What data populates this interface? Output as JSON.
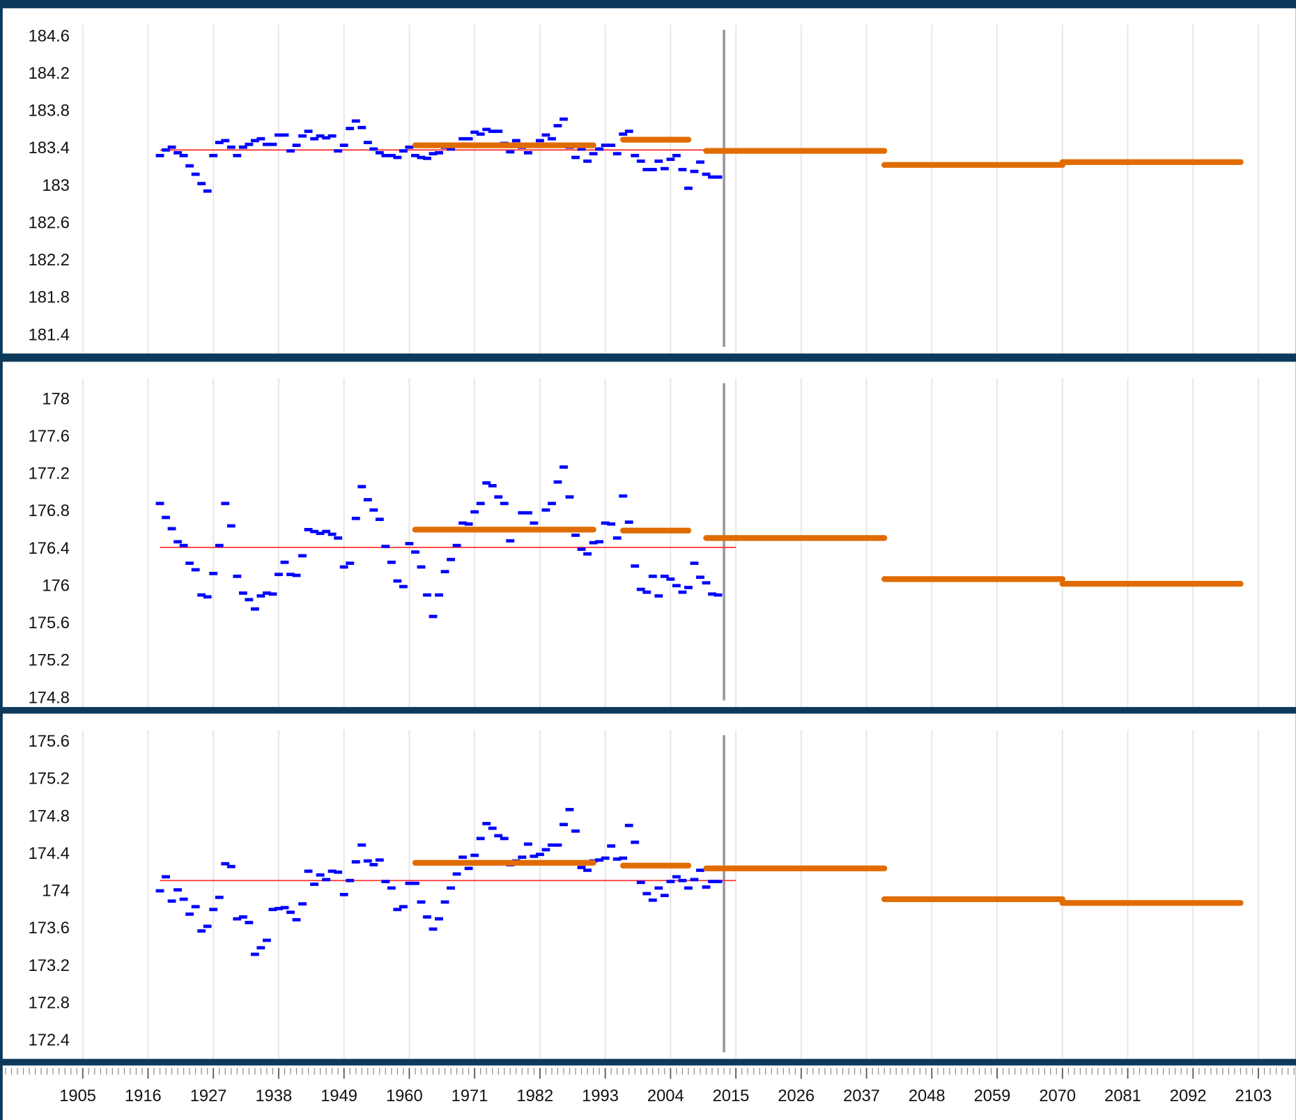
{
  "x_axis": {
    "xlim": [
      1891.1,
      2109.3
    ],
    "xticks": [
      1905,
      1916,
      1927,
      1938,
      1949,
      1960,
      1971,
      1982,
      1993,
      2004,
      2015,
      2026,
      2037,
      2048,
      2059,
      2070,
      2081,
      2092,
      2103
    ],
    "x": [
      1918,
      1919,
      1920,
      1921,
      1922,
      1923,
      1924,
      1925,
      1926,
      1927,
      1928,
      1929,
      1930,
      1931,
      1932,
      1933,
      1934,
      1935,
      1936,
      1937,
      1938,
      1939,
      1940,
      1941,
      1942,
      1943,
      1944,
      1945,
      1946,
      1947,
      1948,
      1949,
      1950,
      1951,
      1952,
      1953,
      1954,
      1955,
      1956,
      1957,
      1958,
      1959,
      1960,
      1961,
      1962,
      1963,
      1964,
      1965,
      1966,
      1967,
      1968,
      1969,
      1970,
      1971,
      1972,
      1973,
      1974,
      1975,
      1976,
      1977,
      1978,
      1979,
      1980,
      1981,
      1982,
      1983,
      1984,
      1985,
      1986,
      1987,
      1988,
      1989,
      1990,
      1991,
      1992,
      1993,
      1994,
      1995,
      1996,
      1997,
      1998,
      1999,
      2000,
      2001,
      2002,
      2003,
      2004,
      2005,
      2006,
      2007,
      2008,
      2009,
      2010,
      2011,
      2012
    ],
    "marker_x": 2013,
    "grid": true
  },
  "chart_data": [
    {
      "type": "scatter",
      "ylim": [
        181.21,
        184.89
      ],
      "yticks": [
        181.4,
        181.8,
        182.2,
        182.6,
        183,
        183.4,
        183.8,
        184.2,
        184.6
      ],
      "series": [
        {
          "color": "#0000ff",
          "values": [
            183.33,
            183.39,
            183.42,
            183.36,
            183.33,
            183.22,
            183.13,
            183.03,
            182.95,
            183.33,
            183.47,
            183.49,
            183.42,
            183.33,
            183.42,
            183.45,
            183.49,
            183.51,
            183.45,
            183.45,
            183.55,
            183.55,
            183.38,
            183.44,
            183.54,
            183.59,
            183.51,
            183.54,
            183.52,
            183.54,
            183.38,
            183.44,
            183.62,
            183.7,
            183.63,
            183.47,
            183.4,
            183.36,
            183.33,
            183.33,
            183.31,
            183.38,
            183.42,
            183.33,
            183.31,
            183.3,
            183.35,
            183.36,
            183.42,
            183.4,
            183.45,
            183.51,
            183.51,
            183.58,
            183.56,
            183.61,
            183.59,
            183.59,
            183.46,
            183.37,
            183.49,
            183.42,
            183.36,
            183.44,
            183.49,
            183.55,
            183.51,
            183.65,
            183.72,
            183.42,
            183.31,
            183.4,
            183.27,
            183.35,
            183.4,
            183.44,
            183.44,
            183.35,
            183.56,
            183.59,
            183.33,
            183.27,
            183.18,
            183.18,
            183.27,
            183.19,
            183.29,
            183.33,
            183.18,
            182.98,
            183.16,
            183.26,
            183.13,
            183.1,
            183.1
          ]
        }
      ],
      "mean": {
        "color": "#ff3333",
        "value": 183.39,
        "x": [
          1918,
          2015
        ]
      },
      "periods": {
        "color": "#e06c00",
        "start": [
          1961,
          1996,
          2010,
          2040,
          2070
        ],
        "end": [
          1991,
          2007,
          2040,
          2070,
          2100
        ],
        "values": [
          183.44,
          183.5,
          183.38,
          183.23,
          183.26
        ]
      }
    },
    {
      "type": "scatter",
      "ylim": [
        174.71,
        178.39
      ],
      "yticks": [
        174.8,
        175.2,
        175.6,
        176,
        176.4,
        176.8,
        177.2,
        177.6,
        178
      ],
      "series": [
        {
          "color": "#0000ff",
          "values": [
            176.89,
            176.74,
            176.62,
            176.48,
            176.44,
            176.25,
            176.18,
            175.91,
            175.89,
            176.14,
            176.44,
            176.89,
            176.65,
            176.11,
            175.93,
            175.86,
            175.76,
            175.9,
            175.93,
            175.92,
            176.13,
            176.26,
            176.13,
            176.12,
            176.33,
            176.61,
            176.59,
            176.57,
            176.59,
            176.56,
            176.52,
            176.21,
            176.25,
            176.73,
            177.07,
            176.93,
            176.82,
            176.72,
            176.43,
            176.26,
            176.06,
            176.0,
            176.46,
            176.37,
            176.21,
            175.91,
            175.68,
            175.91,
            176.16,
            176.29,
            176.44,
            176.68,
            176.67,
            176.8,
            176.89,
            177.11,
            177.08,
            176.96,
            176.89,
            176.49,
            176.62,
            176.79,
            176.79,
            176.68,
            176.62,
            176.82,
            176.89,
            177.12,
            177.28,
            176.96,
            176.55,
            176.4,
            176.35,
            176.47,
            176.48,
            176.68,
            176.67,
            176.52,
            176.97,
            176.69,
            176.22,
            175.97,
            175.94,
            176.11,
            175.9,
            176.11,
            176.08,
            176.01,
            175.94,
            175.99,
            176.25,
            176.1,
            176.04,
            175.92,
            175.91
          ]
        }
      ],
      "mean": {
        "color": "#ff3333",
        "value": 176.42,
        "x": [
          1918,
          2015
        ]
      },
      "periods": {
        "color": "#e06c00",
        "start": [
          1961,
          1996,
          2010,
          2040,
          2070
        ],
        "end": [
          1991,
          2007,
          2040,
          2070,
          2100
        ],
        "values": [
          176.61,
          176.6,
          176.52,
          176.08,
          176.03
        ]
      }
    },
    {
      "type": "scatter",
      "ylim": [
        172.21,
        175.89
      ],
      "yticks": [
        172.4,
        172.8,
        173.2,
        173.6,
        174,
        174.4,
        174.8,
        175.2,
        175.6
      ],
      "series": [
        {
          "color": "#0000ff",
          "values": [
            174.01,
            174.16,
            173.9,
            174.02,
            173.92,
            173.76,
            173.84,
            173.58,
            173.63,
            173.81,
            173.94,
            174.3,
            174.27,
            173.71,
            173.73,
            173.67,
            173.33,
            173.4,
            173.48,
            173.81,
            173.82,
            173.83,
            173.78,
            173.7,
            173.87,
            174.22,
            174.08,
            174.18,
            174.13,
            174.22,
            174.21,
            173.97,
            174.12,
            174.32,
            174.5,
            174.33,
            174.29,
            174.34,
            174.11,
            174.04,
            173.81,
            173.84,
            174.09,
            174.09,
            173.89,
            173.73,
            173.6,
            173.71,
            173.89,
            174.04,
            174.19,
            174.37,
            174.25,
            174.39,
            174.57,
            174.73,
            174.68,
            174.6,
            174.57,
            174.29,
            174.33,
            174.37,
            174.51,
            174.38,
            174.4,
            174.45,
            174.5,
            174.5,
            174.72,
            174.88,
            174.65,
            174.26,
            174.23,
            174.33,
            174.34,
            174.36,
            174.49,
            174.35,
            174.36,
            174.71,
            174.53,
            174.1,
            173.98,
            173.91,
            174.04,
            173.96,
            174.11,
            174.16,
            174.12,
            174.04,
            174.13,
            174.23,
            174.05,
            174.11,
            174.11
          ]
        }
      ],
      "mean": {
        "color": "#ff3333",
        "value": 174.12,
        "x": [
          1918,
          2015
        ]
      },
      "periods": {
        "color": "#e06c00",
        "start": [
          1961,
          1996,
          2010,
          2040,
          2070
        ],
        "end": [
          1991,
          2007,
          2040,
          2070,
          2100
        ],
        "values": [
          174.31,
          174.28,
          174.25,
          173.92,
          173.88
        ]
      }
    }
  ]
}
